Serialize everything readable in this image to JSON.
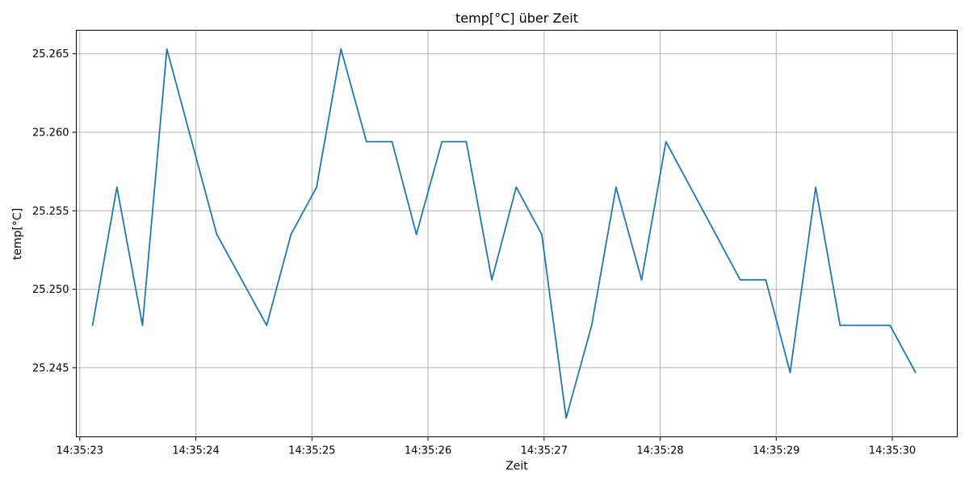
{
  "chart_data": {
    "type": "line",
    "title": "temp[°C] über Zeit",
    "xlabel": "Zeit",
    "ylabel": "temp[°C]",
    "grid": true,
    "color": "#1f77b4",
    "xlim": [
      "14:35:22.970",
      "14:35:30.560"
    ],
    "ylim": [
      25.2406,
      25.2665
    ],
    "x_ticks": [
      "14:35:23",
      "14:35:24",
      "14:35:25",
      "14:35:26",
      "14:35:27",
      "14:35:28",
      "14:35:29",
      "14:35:30"
    ],
    "y_ticks": [
      "25.245",
      "25.250",
      "25.255",
      "25.260",
      "25.265"
    ],
    "series": [
      {
        "x": [
          "14:35:23.110",
          "14:35:23.320",
          "14:35:23.540",
          "14:35:23.750",
          "14:35:24.180",
          "14:35:24.610",
          "14:35:24.820",
          "14:35:25.040",
          "14:35:25.250",
          "14:35:25.470",
          "14:35:25.690",
          "14:35:25.900",
          "14:35:26.120",
          "14:35:26.330",
          "14:35:26.550",
          "14:35:26.760",
          "14:35:26.980",
          "14:35:27.190",
          "14:35:27.410",
          "14:35:27.620",
          "14:35:27.840",
          "14:35:28.050",
          "14:35:28.690",
          "14:35:28.910",
          "14:35:29.120",
          "14:35:29.340",
          "14:35:29.550",
          "14:35:29.980",
          "14:35:30.200"
        ],
        "values": [
          25.2477,
          25.2565,
          25.2477,
          25.2653,
          25.2535,
          25.2477,
          25.2535,
          25.2565,
          25.2653,
          25.2594,
          25.2594,
          25.2535,
          25.2594,
          25.2594,
          25.2506,
          25.2565,
          25.2535,
          25.2418,
          25.2477,
          25.2565,
          25.2506,
          25.2594,
          25.2506,
          25.2506,
          25.2447,
          25.2565,
          25.2477,
          25.2477,
          25.2447
        ]
      }
    ]
  }
}
